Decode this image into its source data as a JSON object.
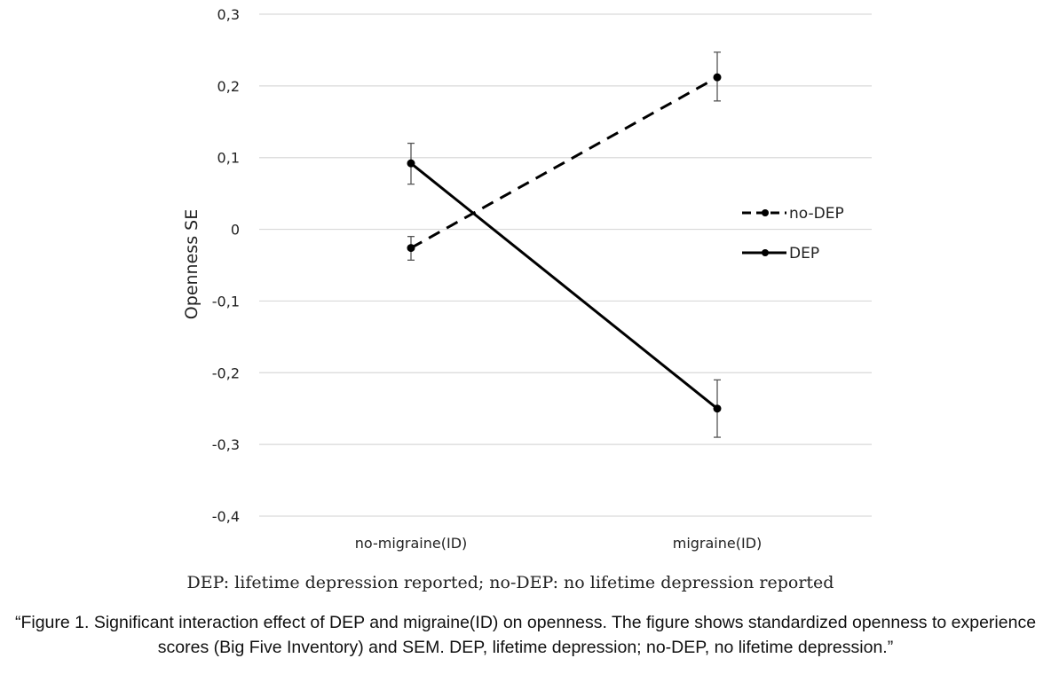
{
  "chart_data": {
    "type": "line",
    "categories": [
      "no-migraine(ID)",
      "migraine(ID)"
    ],
    "ylabel": "Openness SE",
    "xlabel": "",
    "ylim": [
      -0.4,
      0.3
    ],
    "yticks": [
      0.3,
      0.2,
      0.1,
      0,
      -0.1,
      -0.2,
      -0.3,
      -0.4
    ],
    "ytick_labels": [
      "0,3",
      "0,2",
      "0,1",
      "0",
      "-0,1",
      "-0,2",
      "-0,3",
      "-0,4"
    ],
    "grid": true,
    "legend_position": "right",
    "series": [
      {
        "name": "no-DEP",
        "style": "dashed",
        "values": [
          -0.026,
          0.212
        ],
        "err_upper": [
          -0.01,
          0.247
        ],
        "err_lower": [
          -0.043,
          0.179
        ]
      },
      {
        "name": "DEP",
        "style": "solid",
        "values": [
          0.092,
          -0.25
        ],
        "err_upper": [
          0.12,
          -0.21
        ],
        "err_lower": [
          0.063,
          -0.29
        ]
      }
    ]
  },
  "note": "DEP: lifetime depression reported; no-DEP: no lifetime depression reported",
  "caption": "“Figure 1. Significant interaction effect of DEP and migraine(ID) on openness. The figure shows standardized openness to experience scores (Big Five Inventory) and SEM. DEP, lifetime depression; no-DEP, no lifetime depression.”"
}
